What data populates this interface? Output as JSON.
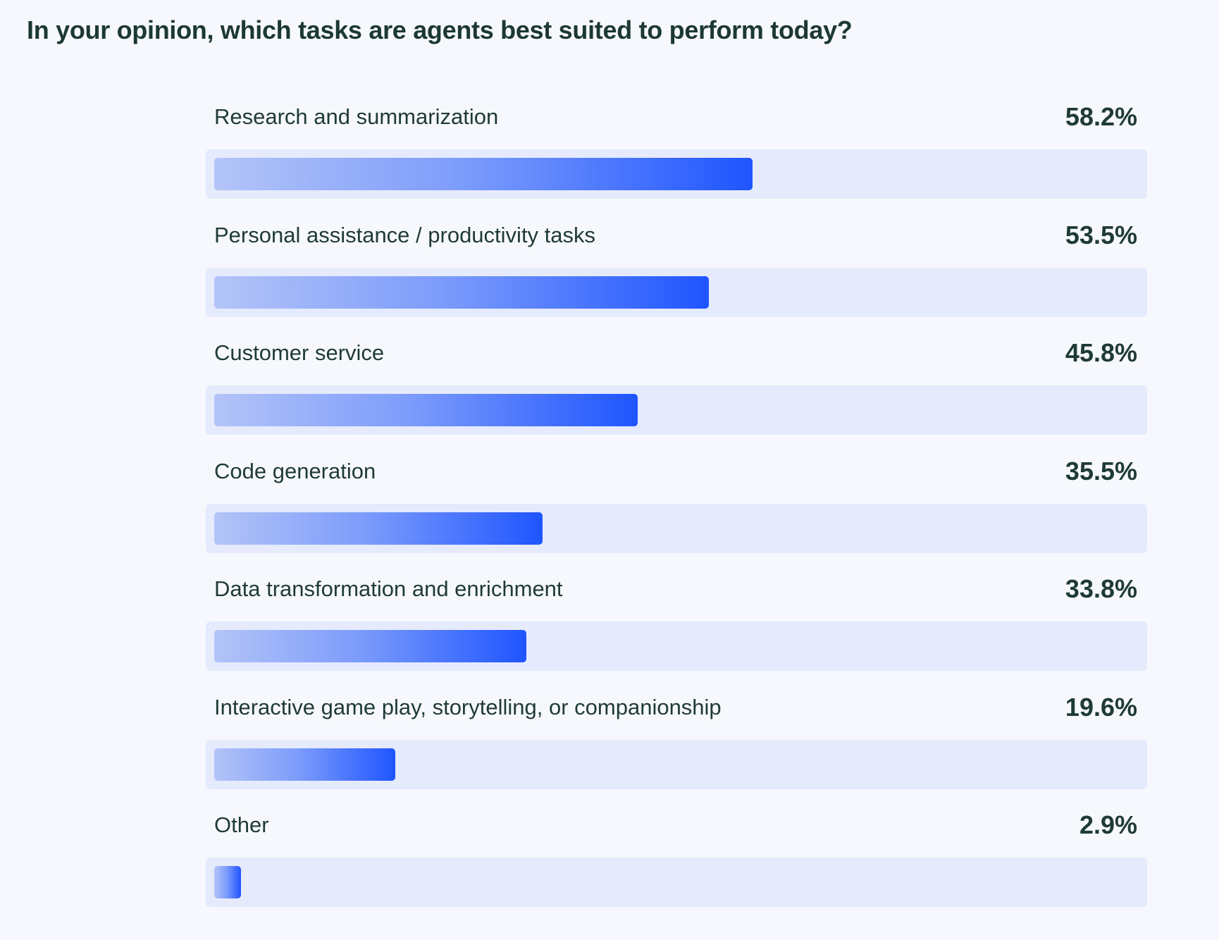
{
  "chart_data": {
    "type": "bar",
    "orientation": "horizontal",
    "title": "In your opinion, which tasks are agents best suited to perform today?",
    "xlabel": "",
    "ylabel": "",
    "xlim": [
      0,
      100
    ],
    "grid": false,
    "legend": "none",
    "unit": "%",
    "categories": [
      "Research and summarization",
      "Personal assistance / productivity tasks",
      "Customer service",
      "Code generation",
      "Data transformation and enrichment",
      "Interactive game play, storytelling, or companionship",
      "Other"
    ],
    "values": [
      58.2,
      53.5,
      45.8,
      35.5,
      33.8,
      19.6,
      2.9
    ],
    "value_labels": [
      "58.2%",
      "53.5%",
      "45.8%",
      "35.5%",
      "33.8%",
      "19.6%",
      "2.9%"
    ],
    "colors": {
      "fill_start": "#b3c4f7",
      "fill_end": "#1f55ff",
      "track": "#e5eafd",
      "background": "#f6f8fd",
      "text": "#1f3a37"
    }
  }
}
